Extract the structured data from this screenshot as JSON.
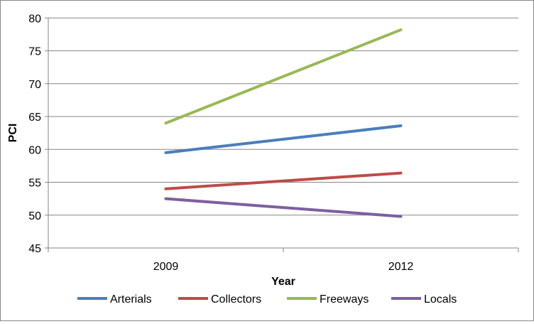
{
  "chart_data": {
    "type": "line",
    "title": "",
    "xlabel": "Year",
    "ylabel": "PCI",
    "categories": [
      "2009",
      "2012"
    ],
    "ylim": [
      45,
      80
    ],
    "yticks": [
      45,
      50,
      55,
      60,
      65,
      70,
      75,
      80
    ],
    "grid": true,
    "legend_position": "bottom",
    "series": [
      {
        "name": "Arterials",
        "values": [
          59.5,
          63.6
        ],
        "color": "#4a7ebb"
      },
      {
        "name": "Collectors",
        "values": [
          54.0,
          56.4
        ],
        "color": "#be4b48"
      },
      {
        "name": "Freeways",
        "values": [
          64.0,
          78.2
        ],
        "color": "#98b954"
      },
      {
        "name": "Locals",
        "values": [
          52.5,
          49.8
        ],
        "color": "#7d5fa0"
      }
    ]
  }
}
